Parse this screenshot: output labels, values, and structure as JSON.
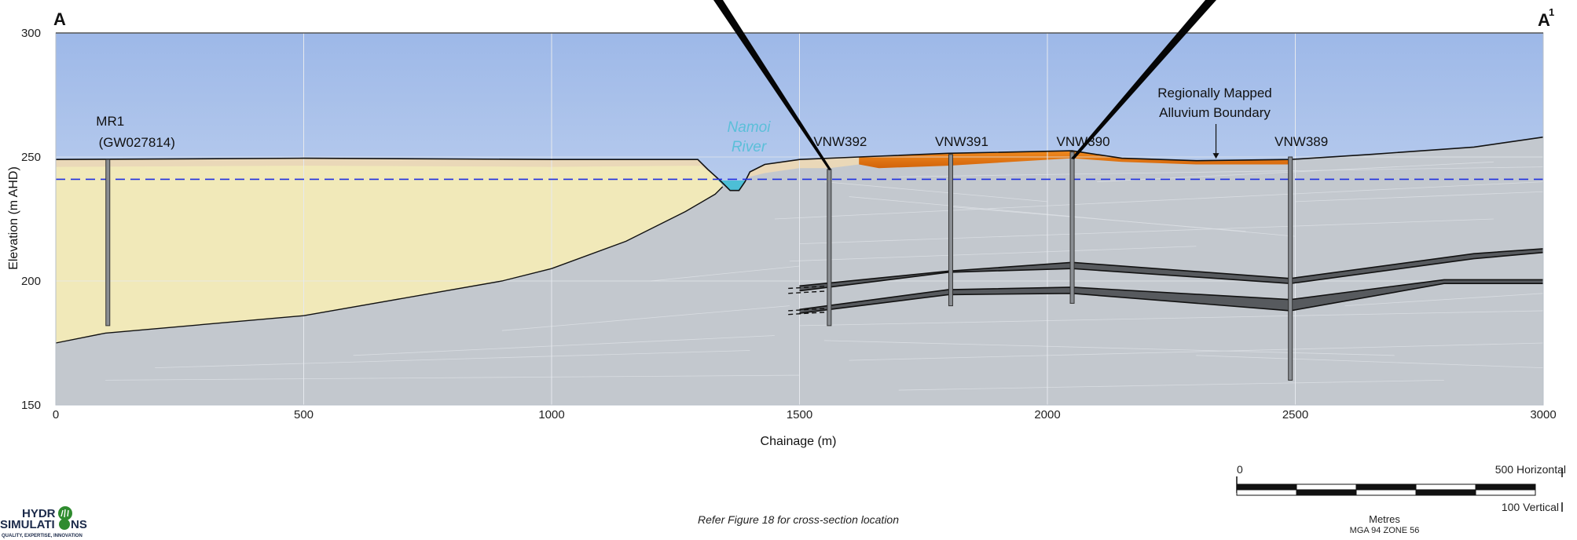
{
  "section_start_label": "A",
  "section_end_label": "A",
  "section_end_sup": "1",
  "axes": {
    "ylabel": "Elevation (m AHD)",
    "xlabel": "Chainage (m)",
    "x_ticks": [
      "0",
      "500",
      "1000",
      "1500",
      "2000",
      "2500",
      "3000"
    ],
    "y_ticks": [
      "300",
      "250",
      "200",
      "150"
    ]
  },
  "chart_data": {
    "type": "cross-section",
    "xlim": [
      0,
      3000
    ],
    "ylim": [
      150,
      300
    ],
    "water_table_elevation": 241,
    "bores": [
      {
        "name": "MR1",
        "sub": "(GW027814)",
        "chainage": 105,
        "top": 249,
        "bottom": 182
      },
      {
        "name": "VNW392",
        "chainage": 1560,
        "top": 245,
        "bottom": 182
      },
      {
        "name": "VNW391",
        "chainage": 1805,
        "top": 251,
        "bottom": 190
      },
      {
        "name": "VNW390",
        "chainage": 2050,
        "top": 252,
        "bottom": 191
      },
      {
        "name": "VNW389",
        "chainage": 2490,
        "top": 250,
        "bottom": 160
      }
    ],
    "surface_profile": [
      [
        0,
        249
      ],
      [
        500,
        249.5
      ],
      [
        1000,
        249
      ],
      [
        1295,
        249
      ],
      [
        1315,
        245
      ],
      [
        1340,
        240.5
      ],
      [
        1360,
        236.5
      ],
      [
        1378,
        236.5
      ],
      [
        1390,
        240
      ],
      [
        1400,
        244
      ],
      [
        1430,
        247
      ],
      [
        1500,
        249
      ],
      [
        1620,
        250
      ],
      [
        1800,
        251.5
      ],
      [
        2050,
        252.5
      ],
      [
        2150,
        249.5
      ],
      [
        2300,
        248.5
      ],
      [
        2490,
        249
      ],
      [
        2650,
        251
      ],
      [
        2860,
        254
      ],
      [
        3000,
        258
      ]
    ],
    "alluvium_base": [
      [
        0,
        175
      ],
      [
        100,
        179
      ],
      [
        500,
        186
      ],
      [
        900,
        200
      ],
      [
        1000,
        205
      ],
      [
        1150,
        216
      ],
      [
        1270,
        228
      ],
      [
        1330,
        235
      ],
      [
        1345,
        238
      ]
    ],
    "upper_seam": {
      "top": [
        [
          1500,
          198
        ],
        [
          1800,
          204
        ],
        [
          2050,
          207.5
        ],
        [
          2490,
          201
        ],
        [
          2860,
          211
        ],
        [
          3000,
          213
        ]
      ],
      "bottom": [
        [
          1500,
          196
        ],
        [
          1800,
          203.5
        ],
        [
          2050,
          205
        ],
        [
          2490,
          199
        ],
        [
          2860,
          209
        ],
        [
          3000,
          211.5
        ]
      ]
    },
    "middle_seam": {
      "top": [
        [
          1500,
          188.5
        ],
        [
          1800,
          196.5
        ],
        [
          2050,
          197.5
        ],
        [
          2490,
          192.5
        ],
        [
          2800,
          200.5
        ],
        [
          3000,
          200.5
        ]
      ],
      "bottom": [
        [
          1500,
          187
        ],
        [
          1800,
          194.5
        ],
        [
          2050,
          195
        ],
        [
          2490,
          188
        ],
        [
          2800,
          199
        ],
        [
          3000,
          199
        ]
      ]
    },
    "annotation": "Regionally Mapped Alluvium Boundary",
    "annotation_chainage": 2340,
    "river_label_1": "Namoi",
    "river_label_2": "River"
  },
  "footer": {
    "note": "Refer Figure 18 for cross-section location",
    "scale_zero": "0",
    "scale_horizontal": "500 Horizontal",
    "scale_vertical": "100 Vertical",
    "scale_units": "Metres",
    "projection": "MGA 94 ZONE 56"
  },
  "logo": {
    "line1": "HYDR",
    "line2": "SIMULATI",
    "line3": "NS",
    "tagline": "QUALITY, EXPERTISE, INNOVATION"
  },
  "colors": {
    "sky_top": "#9db8e8",
    "sky_bottom": "#dce6f4",
    "bedrock": "#c3c8ce",
    "alluvium": "#f1e9b9",
    "surface_soil": "#ead8b8",
    "orange_unit": "#e3750f",
    "river_water": "#4dbfd6",
    "water_table": "#1f2fe0",
    "seam": "#575a5e"
  }
}
